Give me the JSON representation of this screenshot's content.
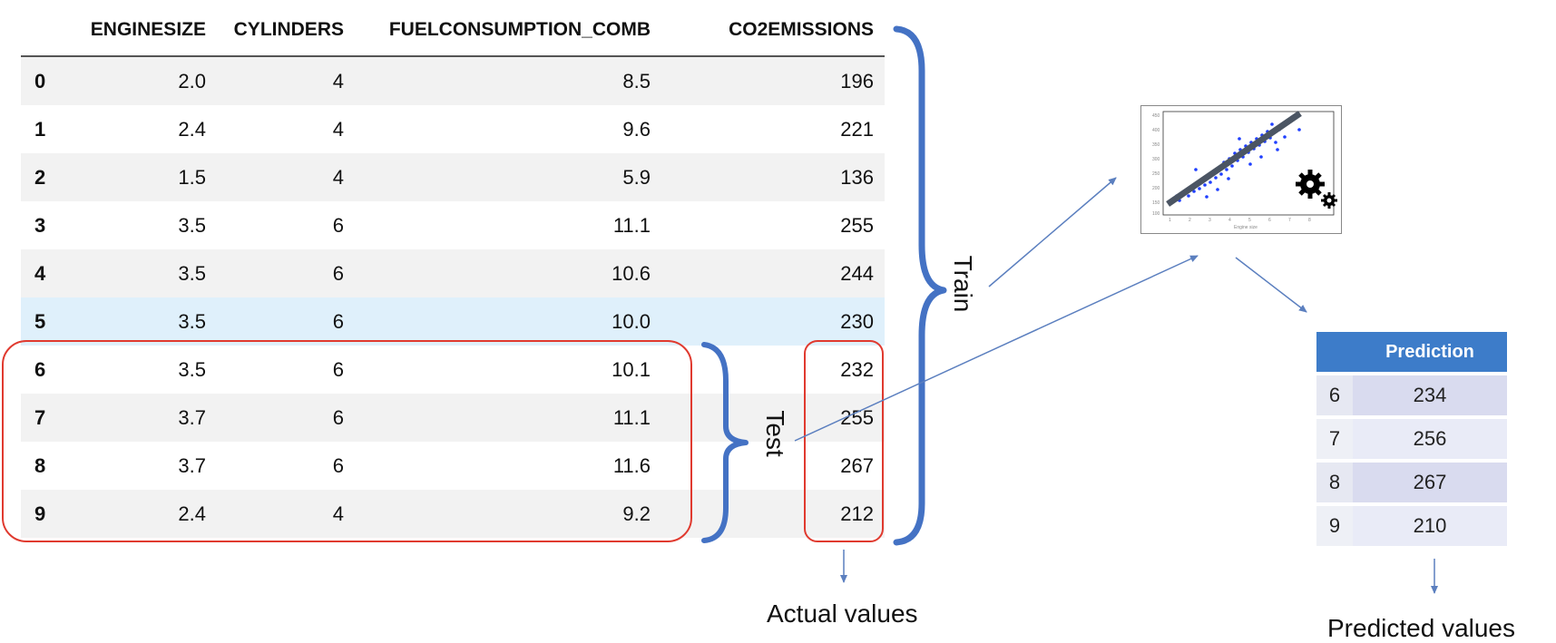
{
  "table": {
    "columns": [
      "",
      "ENGINESIZE",
      "CYLINDERS",
      "FUELCONSUMPTION_COMB",
      "CO2EMISSIONS"
    ],
    "rows": [
      [
        "0",
        "2.0",
        "4",
        "8.5",
        "196"
      ],
      [
        "1",
        "2.4",
        "4",
        "9.6",
        "221"
      ],
      [
        "2",
        "1.5",
        "4",
        "5.9",
        "136"
      ],
      [
        "3",
        "3.5",
        "6",
        "11.1",
        "255"
      ],
      [
        "4",
        "3.5",
        "6",
        "10.6",
        "244"
      ],
      [
        "5",
        "3.5",
        "6",
        "10.0",
        "230"
      ],
      [
        "6",
        "3.5",
        "6",
        "10.1",
        "232"
      ],
      [
        "7",
        "3.7",
        "6",
        "11.1",
        "255"
      ],
      [
        "8",
        "3.7",
        "6",
        "11.6",
        "267"
      ],
      [
        "9",
        "2.4",
        "4",
        "9.2",
        "212"
      ]
    ]
  },
  "labels": {
    "train": "Train",
    "test": "Test",
    "actual": "Actual values",
    "predicted": "Predicted values"
  },
  "prediction_table": {
    "header": "Prediction",
    "rows": [
      [
        "6",
        "234"
      ],
      [
        "7",
        "256"
      ],
      [
        "8",
        "267"
      ],
      [
        "9",
        "210"
      ]
    ]
  },
  "colors": {
    "brace": "#4472c4",
    "test_box": "#e03a2f",
    "arrow": "#5b7fbf",
    "pred_header": "#3d7cc9",
    "row_highlight": "#dff0fb"
  },
  "icons": [
    "scatter-plot-icon",
    "gears-icon"
  ]
}
